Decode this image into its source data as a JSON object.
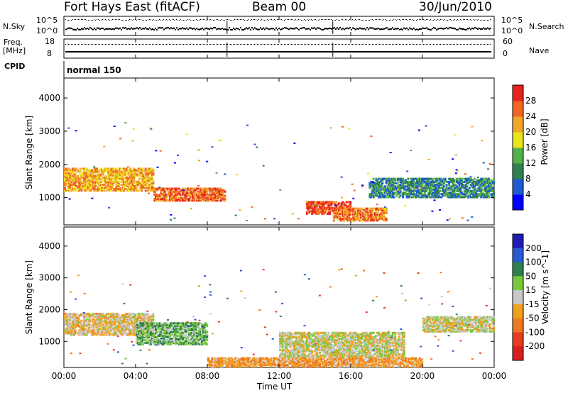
{
  "header": {
    "station": "Fort Hays East (fitACF)",
    "beam": "Beam 00",
    "date": "30/Jun/2010"
  },
  "noise_panel": {
    "left_label": "N.Sky",
    "right_label": "N.Search",
    "y_ticks": [
      "10^5",
      "10^0"
    ]
  },
  "freq_panel": {
    "left_label_1": "Freq.",
    "left_label_2": "[MHz]",
    "right_label": "Nave",
    "left_ticks": [
      "18",
      "8"
    ],
    "right_ticks": [
      "60",
      "0"
    ]
  },
  "cpid": {
    "label": "CPID",
    "value": "normal 150"
  },
  "chart_data": [
    {
      "type": "heatmap",
      "title": "",
      "quantity": "Power",
      "ylabel": "Slant Range [km]",
      "xlabel": "",
      "y_ticks": [
        1000,
        2000,
        3000,
        4000
      ],
      "ylim": [
        180,
        4600
      ],
      "xlim": [
        "00:00",
        "24:00"
      ],
      "colorbar": {
        "label": "Power [dB]",
        "ticks": [
          4,
          8,
          12,
          16,
          20,
          24,
          28
        ],
        "range": [
          0,
          30
        ],
        "colors": [
          "#0000ff",
          "#1e5ad2",
          "#2f7f4f",
          "#52b24a",
          "#e8e61a",
          "#f2a72b",
          "#f26522",
          "#e8231c"
        ]
      },
      "echo_regions": [
        {
          "t_start": "00:00",
          "t_end": "05:00",
          "range_km": [
            1200,
            1900
          ],
          "level_db": 22
        },
        {
          "t_start": "05:00",
          "t_end": "09:00",
          "range_km": [
            900,
            1300
          ],
          "level_db": 26
        },
        {
          "t_start": "13:30",
          "t_end": "16:00",
          "range_km": [
            500,
            900
          ],
          "level_db": 28
        },
        {
          "t_start": "15:00",
          "t_end": "18:00",
          "range_km": [
            300,
            700
          ],
          "level_db": 25
        },
        {
          "t_start": "17:00",
          "t_end": "24:00",
          "range_km": [
            1000,
            1600
          ],
          "level_db": 10
        }
      ]
    },
    {
      "type": "heatmap",
      "title": "",
      "quantity": "Velocity",
      "ylabel": "Slant Range [km]",
      "xlabel": "Time UT",
      "x_ticks": [
        "00:00",
        "04:00",
        "08:00",
        "12:00",
        "16:00",
        "20:00",
        "00:00"
      ],
      "y_ticks": [
        1000,
        2000,
        3000,
        4000
      ],
      "ylim": [
        180,
        4600
      ],
      "colorbar": {
        "label": "Velocity [m s^-1]",
        "ticks": [
          200,
          100,
          50,
          15,
          -15,
          -50,
          -100,
          -200
        ],
        "range": [
          -250,
          250
        ],
        "colors": [
          "#1e1eb4",
          "#2a5ad0",
          "#2f7f4f",
          "#78c83c",
          "#c8c8c8",
          "#f0a020",
          "#f07820",
          "#e83c1e",
          "#d81e1e"
        ]
      },
      "echo_regions": [
        {
          "t_start": "00:00",
          "t_end": "05:00",
          "range_km": [
            1200,
            1900
          ],
          "velocity_ms": -15
        },
        {
          "t_start": "04:00",
          "t_end": "08:00",
          "range_km": [
            900,
            1600
          ],
          "velocity_ms": 40
        },
        {
          "t_start": "08:00",
          "t_end": "20:00",
          "range_km": [
            200,
            500
          ],
          "velocity_ms": -40
        },
        {
          "t_start": "12:00",
          "t_end": "19:00",
          "range_km": [
            500,
            1300
          ],
          "velocity_ms": 0
        },
        {
          "t_start": "20:00",
          "t_end": "24:00",
          "range_km": [
            1300,
            1800
          ],
          "velocity_ms": 0
        }
      ]
    }
  ]
}
